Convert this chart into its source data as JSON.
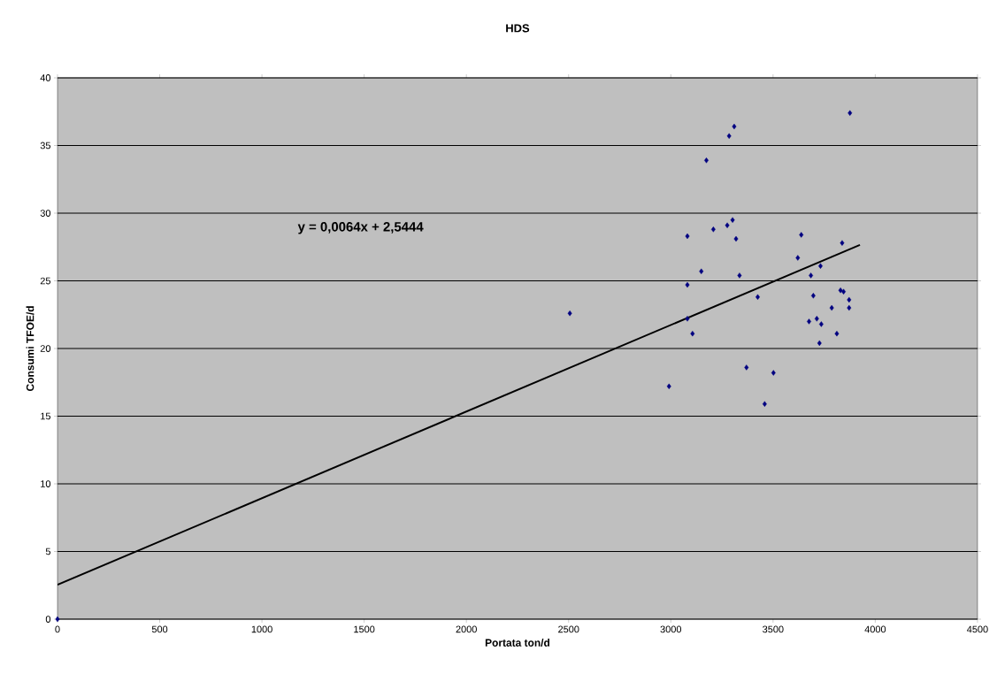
{
  "chart_data": {
    "type": "scatter",
    "title": "HDS",
    "xlabel": "Portata ton/d",
    "ylabel": "Consumi TFOE/d",
    "xlim": [
      0,
      4500
    ],
    "xticks": [
      0,
      500,
      1000,
      1500,
      2000,
      2500,
      3000,
      3500,
      4000,
      4500
    ],
    "ylim": [
      0,
      40
    ],
    "yticks": [
      0,
      5,
      10,
      15,
      20,
      25,
      30,
      35,
      40
    ],
    "grid": "y",
    "marker": "diamond",
    "annotations": [
      "y = 0,0064x + 2,5444"
    ],
    "series": [
      {
        "color": "#000080",
        "x": [
          0,
          2506,
          2991,
          3081,
          3081,
          3081,
          3106,
          3149,
          3174,
          3208,
          3276,
          3285,
          3302,
          3310,
          3319,
          3336,
          3370,
          3425,
          3459,
          3502,
          3621,
          3638,
          3676,
          3685,
          3697,
          3714,
          3727,
          3732,
          3736,
          3787,
          3812,
          3830,
          3838,
          3845,
          3872,
          3872,
          3876
        ],
        "values": [
          0,
          22.6,
          17.2,
          28.3,
          24.7,
          22.2,
          21.1,
          25.7,
          33.9,
          28.8,
          29.1,
          35.7,
          29.5,
          36.4,
          28.1,
          25.4,
          18.6,
          23.8,
          15.9,
          18.2,
          26.7,
          28.4,
          22.0,
          25.4,
          23.9,
          22.2,
          20.4,
          26.1,
          21.8,
          23.0,
          21.1,
          24.3,
          27.8,
          24.2,
          23.6,
          23.0,
          37.4
        ]
      },
      {
        "type": "line",
        "color": "#000000",
        "marker": "none",
        "line_style": "solid",
        "x": [
          0,
          3925
        ],
        "values": [
          2.54,
          27.66
        ]
      }
    ]
  }
}
